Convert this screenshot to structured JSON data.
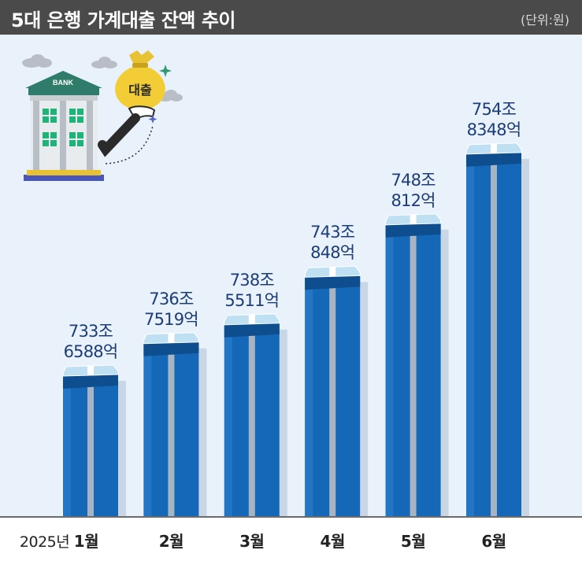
{
  "header": {
    "title": "5대 은행 가계대출 잔액 추이",
    "unit": "(단위:원)"
  },
  "illustration": {
    "bank_sign": "BANK",
    "bag_text": "대출",
    "icons": [
      "bank-building-icon",
      "money-bag-icon",
      "hand-icon",
      "cloud-icon",
      "sparkle-icon"
    ]
  },
  "colors": {
    "bar": "#1568b8",
    "bar_top": "#0e4d8e",
    "label": "#1c3d78",
    "title_bar": "#4a4a4a",
    "background": "#e9f1fb"
  },
  "chart_data": {
    "type": "bar",
    "title": "5대 은행 가계대출 잔액 추이",
    "unit": "(단위:원)",
    "year_label": "2025년",
    "categories": [
      "1월",
      "2월",
      "3월",
      "4월",
      "5월",
      "6월"
    ],
    "values": [
      7336588,
      7367519,
      7385511,
      7430848,
      7480812,
      7548348
    ],
    "value_unit": "억원",
    "data_labels": [
      [
        "733조",
        "6588억"
      ],
      [
        "736조",
        "7519억"
      ],
      [
        "738조",
        "5511억"
      ],
      [
        "743조",
        "848억"
      ],
      [
        "748조",
        "812억"
      ],
      [
        "754조",
        "8348억"
      ]
    ],
    "ylim": [
      7200000,
      7570000
    ],
    "grid": false,
    "legend": "none"
  }
}
